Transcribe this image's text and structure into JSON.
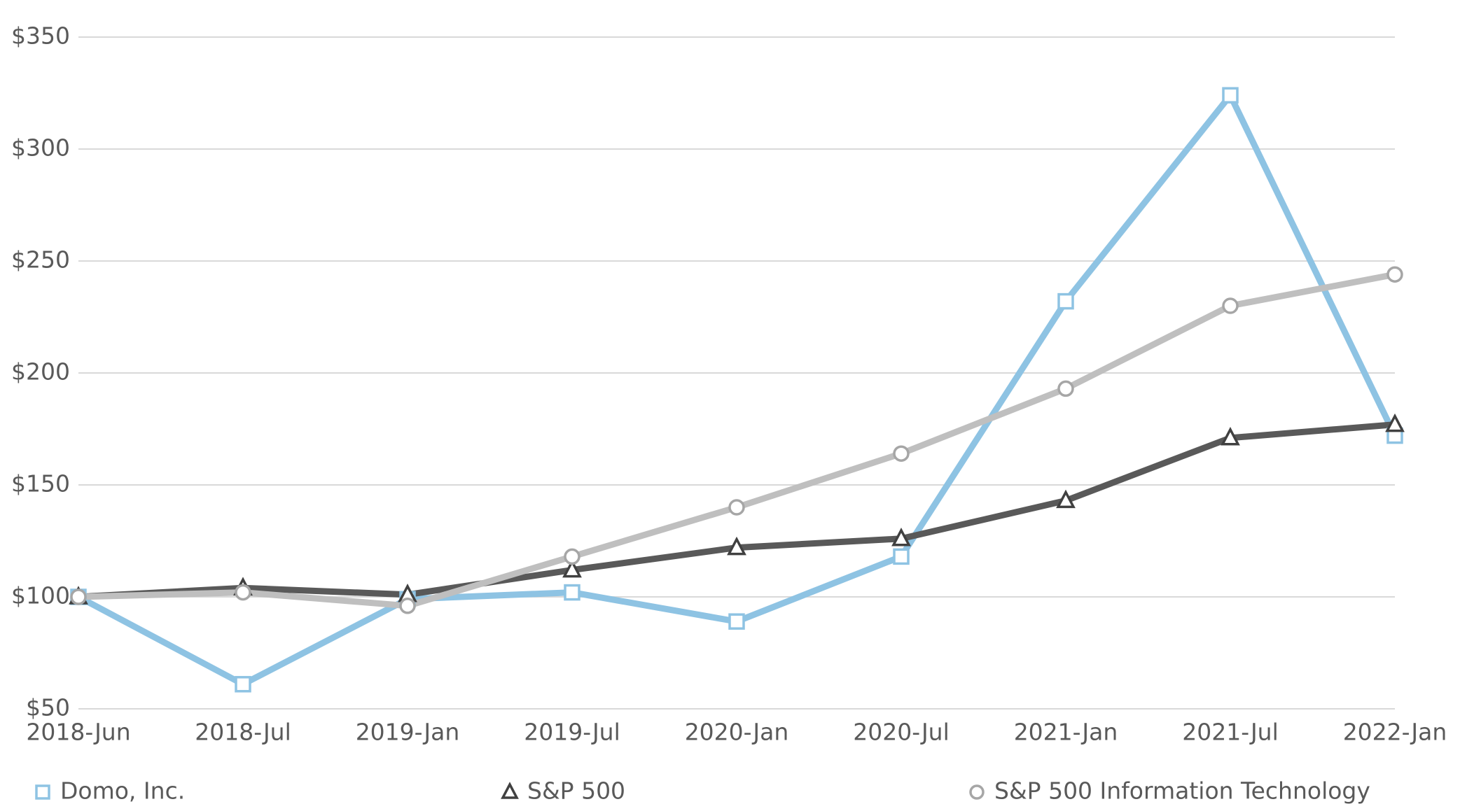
{
  "chart_data": {
    "type": "line",
    "categories": [
      "2018-Jun",
      "2018-Jul",
      "2019-Jan",
      "2019-Jul",
      "2020-Jan",
      "2020-Jul",
      "2021-Jan",
      "2021-Jul",
      "2022-Jan"
    ],
    "series": [
      {
        "name": "Domo, Inc.",
        "color": "#8ec3e3",
        "marker": "square",
        "values": [
          100,
          61,
          99,
          102,
          89,
          118,
          232,
          324,
          172
        ]
      },
      {
        "name": "S&P 500",
        "color": "#595959",
        "marker": "triangle",
        "values": [
          100,
          104,
          101,
          112,
          122,
          126,
          143,
          171,
          177
        ]
      },
      {
        "name": "S&P 500 Information Technology",
        "color": "#bfbfbf",
        "marker": "circle",
        "values": [
          100,
          102,
          96,
          118,
          140,
          164,
          193,
          230,
          244
        ]
      }
    ],
    "ylim": [
      50,
      350
    ],
    "yticks": [
      {
        "value": 50,
        "label": "$50"
      },
      {
        "value": 100,
        "label": "$100"
      },
      {
        "value": 150,
        "label": "$150"
      },
      {
        "value": 200,
        "label": "$200"
      },
      {
        "value": 250,
        "label": "$250"
      },
      {
        "value": 300,
        "label": "$300"
      },
      {
        "value": 350,
        "label": "$350"
      }
    ],
    "grid": true,
    "legend": "bottom"
  }
}
